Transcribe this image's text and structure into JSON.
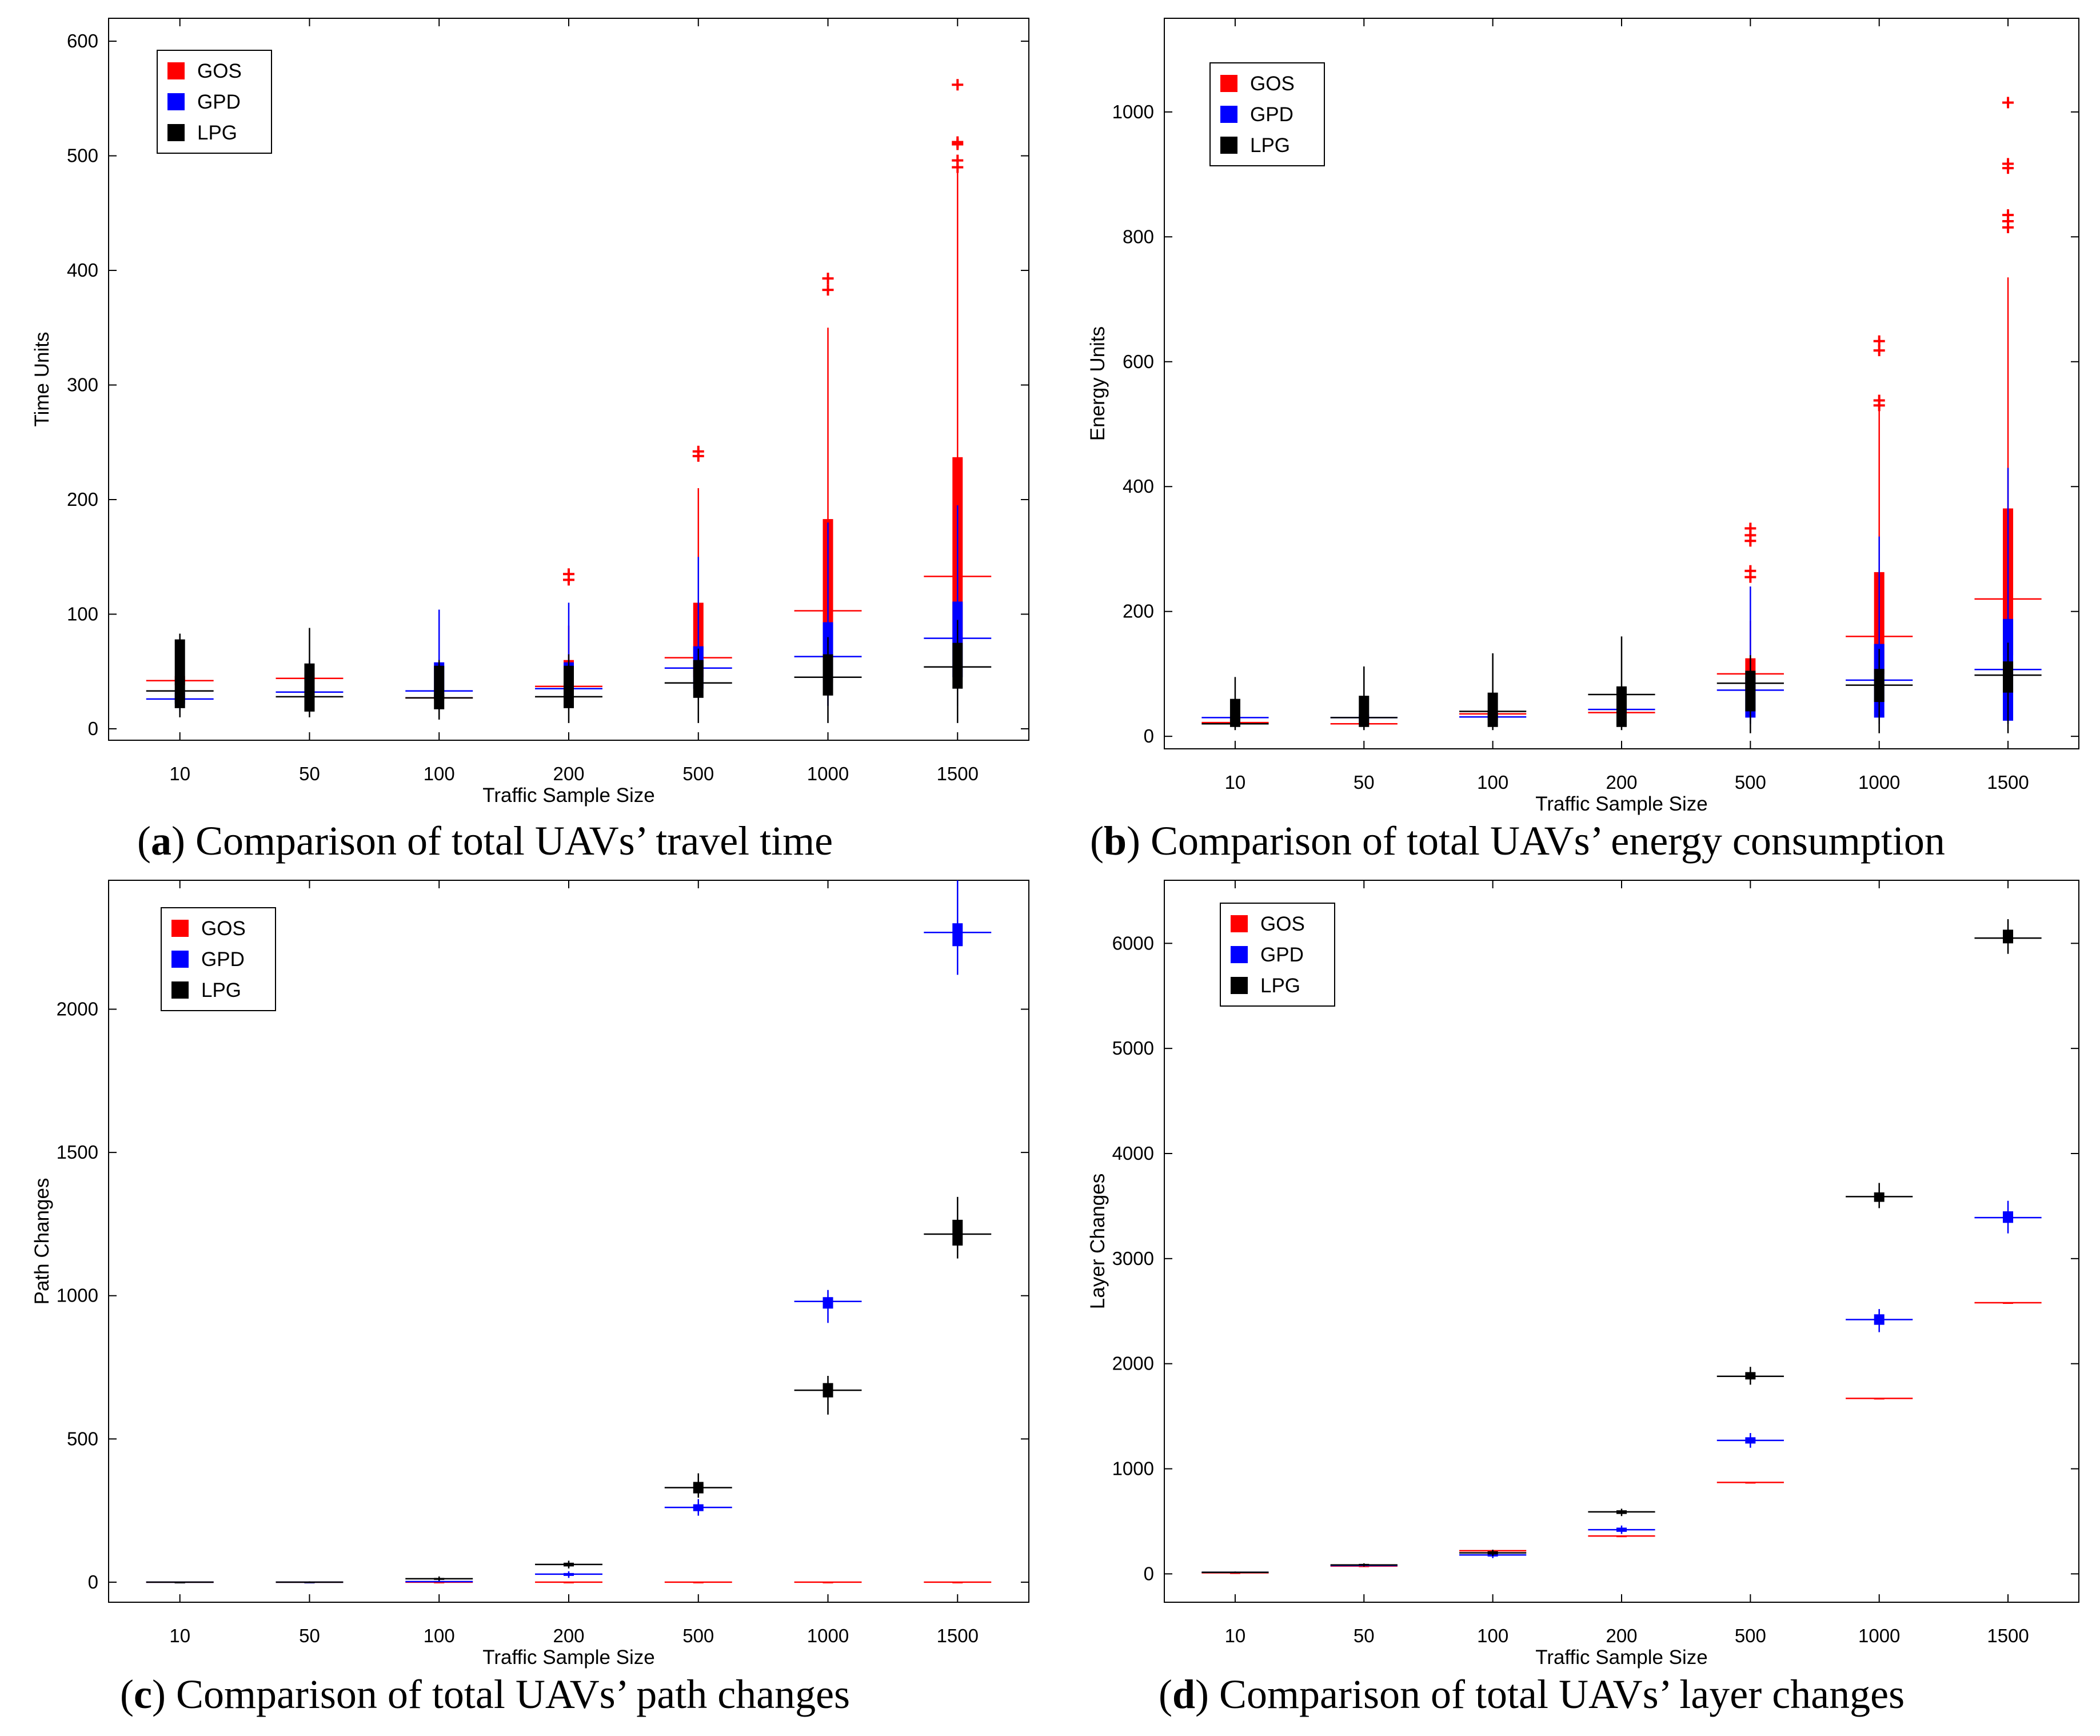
{
  "colors": {
    "GOS": "#ff0000",
    "GPD": "#0000ff",
    "LPG": "#000000"
  },
  "captions": [
    {
      "letter": "a",
      "text": "Comparison of total UAVs’ travel time"
    },
    {
      "letter": "b",
      "text": "Comparison of total UAVs’ energy consumption"
    },
    {
      "letter": "c",
      "text": "Comparison of total UAVs’ path changes"
    },
    {
      "letter": "d",
      "text": "Comparison of total UAVs’ layer changes"
    }
  ],
  "chart_data": [
    {
      "type": "box",
      "title": "Comparison of total UAVs’ travel time",
      "xlabel": "Traffic Sample Size",
      "ylabel": "Time Units",
      "categories": [
        "10",
        "50",
        "100",
        "200",
        "500",
        "1000",
        "1500"
      ],
      "ylim": [
        -10,
        620
      ],
      "yticks": [
        0,
        100,
        200,
        300,
        400,
        500,
        600
      ],
      "legend": [
        "GOS",
        "GPD",
        "LPG"
      ],
      "series": [
        {
          "name": "GOS",
          "boxes": [
            {
              "median": 42,
              "q1": 38,
              "q3": 46,
              "wlo": 35,
              "whi": 50,
              "outliers": []
            },
            {
              "median": 44,
              "q1": 40,
              "q3": 48,
              "wlo": 36,
              "whi": 52,
              "outliers": []
            },
            {
              "median": 27,
              "q1": 25,
              "q3": 30,
              "wlo": 22,
              "whi": 32,
              "outliers": []
            },
            {
              "median": 37,
              "q1": 33,
              "q3": 60,
              "wlo": 28,
              "whi": 90,
              "outliers": [
                130,
                135
              ]
            },
            {
              "median": 62,
              "q1": 45,
              "q3": 110,
              "wlo": 30,
              "whi": 210,
              "outliers": [
                238,
                242
              ]
            },
            {
              "median": 103,
              "q1": 60,
              "q3": 183,
              "wlo": 40,
              "whi": 350,
              "outliers": [
                383,
                393
              ]
            },
            {
              "median": 133,
              "q1": 75,
              "q3": 237,
              "wlo": 50,
              "whi": 485,
              "outliers": [
                490,
                496,
                510,
                512,
                562
              ]
            }
          ]
        },
        {
          "name": "GPD",
          "boxes": [
            {
              "median": 26,
              "q1": 22,
              "q3": 32,
              "wlo": 15,
              "whi": 45,
              "outliers": []
            },
            {
              "median": 32,
              "q1": 28,
              "q3": 37,
              "wlo": 22,
              "whi": 60,
              "outliers": []
            },
            {
              "median": 33,
              "q1": 27,
              "q3": 58,
              "wlo": 15,
              "whi": 104,
              "outliers": []
            },
            {
              "median": 35,
              "q1": 28,
              "q3": 58,
              "wlo": 18,
              "whi": 110,
              "outliers": []
            },
            {
              "median": 53,
              "q1": 35,
              "q3": 72,
              "wlo": 20,
              "whi": 150,
              "outliers": []
            },
            {
              "median": 63,
              "q1": 40,
              "q3": 93,
              "wlo": 20,
              "whi": 180,
              "outliers": []
            },
            {
              "median": 79,
              "q1": 45,
              "q3": 111,
              "wlo": 20,
              "whi": 195,
              "outliers": []
            }
          ]
        },
        {
          "name": "LPG",
          "boxes": [
            {
              "median": 33,
              "q1": 18,
              "q3": 78,
              "wlo": 10,
              "whi": 83,
              "outliers": []
            },
            {
              "median": 28,
              "q1": 15,
              "q3": 57,
              "wlo": 10,
              "whi": 88,
              "outliers": []
            },
            {
              "median": 27,
              "q1": 17,
              "q3": 55,
              "wlo": 8,
              "whi": 60,
              "outliers": []
            },
            {
              "median": 28,
              "q1": 18,
              "q3": 55,
              "wlo": 5,
              "whi": 65,
              "outliers": []
            },
            {
              "median": 40,
              "q1": 27,
              "q3": 60,
              "wlo": 5,
              "whi": 70,
              "outliers": []
            },
            {
              "median": 45,
              "q1": 29,
              "q3": 65,
              "wlo": 5,
              "whi": 80,
              "outliers": []
            },
            {
              "median": 54,
              "q1": 35,
              "q3": 75,
              "wlo": 5,
              "whi": 95,
              "outliers": []
            }
          ]
        }
      ]
    },
    {
      "type": "box",
      "title": "Comparison of total UAVs’ energy consumption",
      "xlabel": "Traffic Sample Size",
      "ylabel": "Energy Units",
      "categories": [
        "10",
        "50",
        "100",
        "200",
        "500",
        "1000",
        "1500"
      ],
      "ylim": [
        -20,
        1150
      ],
      "yticks": [
        0,
        200,
        400,
        600,
        800,
        1000
      ],
      "legend": [
        "GOS",
        "GPD",
        "LPG"
      ],
      "series": [
        {
          "name": "GOS",
          "boxes": [
            {
              "median": 22,
              "q1": 18,
              "q3": 26,
              "wlo": 15,
              "whi": 30,
              "outliers": []
            },
            {
              "median": 20,
              "q1": 18,
              "q3": 24,
              "wlo": 15,
              "whi": 28,
              "outliers": []
            },
            {
              "median": 36,
              "q1": 32,
              "q3": 40,
              "wlo": 28,
              "whi": 45,
              "outliers": []
            },
            {
              "median": 38,
              "q1": 34,
              "q3": 44,
              "wlo": 30,
              "whi": 50,
              "outliers": []
            },
            {
              "median": 100,
              "q1": 75,
              "q3": 125,
              "wlo": 50,
              "whi": 185,
              "outliers": [
                255,
                265,
                313,
                322,
                333
              ]
            },
            {
              "median": 160,
              "q1": 100,
              "q3": 263,
              "wlo": 60,
              "whi": 525,
              "outliers": [
                530,
                538,
                618,
                633
              ]
            },
            {
              "median": 220,
              "q1": 130,
              "q3": 365,
              "wlo": 70,
              "whi": 735,
              "outliers": [
                815,
                825,
                835,
                910,
                917,
                1015
              ]
            }
          ]
        },
        {
          "name": "GPD",
          "boxes": [
            {
              "median": 30,
              "q1": 25,
              "q3": 35,
              "wlo": 20,
              "whi": 40,
              "outliers": []
            },
            {
              "median": 30,
              "q1": 25,
              "q3": 35,
              "wlo": 20,
              "whi": 40,
              "outliers": []
            },
            {
              "median": 31,
              "q1": 26,
              "q3": 38,
              "wlo": 20,
              "whi": 45,
              "outliers": []
            },
            {
              "median": 43,
              "q1": 18,
              "q3": 46,
              "wlo": 15,
              "whi": 50,
              "outliers": []
            },
            {
              "median": 74,
              "q1": 30,
              "q3": 95,
              "wlo": 20,
              "whi": 240,
              "outliers": []
            },
            {
              "median": 90,
              "q1": 30,
              "q3": 148,
              "wlo": 20,
              "whi": 320,
              "outliers": []
            },
            {
              "median": 107,
              "q1": 25,
              "q3": 188,
              "wlo": 20,
              "whi": 430,
              "outliers": []
            }
          ]
        },
        {
          "name": "LPG",
          "boxes": [
            {
              "median": 20,
              "q1": 15,
              "q3": 60,
              "wlo": 10,
              "whi": 95,
              "outliers": []
            },
            {
              "median": 30,
              "q1": 15,
              "q3": 65,
              "wlo": 10,
              "whi": 112,
              "outliers": []
            },
            {
              "median": 40,
              "q1": 15,
              "q3": 70,
              "wlo": 10,
              "whi": 133,
              "outliers": []
            },
            {
              "median": 67,
              "q1": 15,
              "q3": 80,
              "wlo": 10,
              "whi": 160,
              "outliers": []
            },
            {
              "median": 85,
              "q1": 40,
              "q3": 105,
              "wlo": 5,
              "whi": 130,
              "outliers": []
            },
            {
              "median": 82,
              "q1": 55,
              "q3": 108,
              "wlo": 5,
              "whi": 140,
              "outliers": []
            },
            {
              "median": 98,
              "q1": 70,
              "q3": 120,
              "wlo": 5,
              "whi": 150,
              "outliers": []
            }
          ]
        }
      ]
    },
    {
      "type": "box",
      "title": "Comparison of total UAVs’ path changes",
      "xlabel": "Traffic Sample Size",
      "ylabel": "Path Changes",
      "categories": [
        "10",
        "50",
        "100",
        "200",
        "500",
        "1000",
        "1500"
      ],
      "ylim": [
        -70,
        2450
      ],
      "yticks": [
        0,
        500,
        1000,
        1500,
        2000
      ],
      "legend": [
        "GOS",
        "GPD",
        "LPG"
      ],
      "series": [
        {
          "name": "GOS",
          "boxes": [
            {
              "median": 0,
              "q1": 0,
              "q3": 0,
              "wlo": 0,
              "whi": 0,
              "outliers": []
            },
            {
              "median": 0,
              "q1": 0,
              "q3": 0,
              "wlo": 0,
              "whi": 0,
              "outliers": []
            },
            {
              "median": 0,
              "q1": 0,
              "q3": 0,
              "wlo": 0,
              "whi": 0,
              "outliers": []
            },
            {
              "median": 0,
              "q1": 0,
              "q3": 0,
              "wlo": 0,
              "whi": 0,
              "outliers": []
            },
            {
              "median": 0,
              "q1": 0,
              "q3": 0,
              "wlo": 0,
              "whi": 0,
              "outliers": []
            },
            {
              "median": 0,
              "q1": 0,
              "q3": 0,
              "wlo": 0,
              "whi": 0,
              "outliers": []
            },
            {
              "median": 0,
              "q1": 0,
              "q3": 0,
              "wlo": 0,
              "whi": 0,
              "outliers": []
            }
          ]
        },
        {
          "name": "GPD",
          "boxes": [
            {
              "median": 0,
              "q1": 0,
              "q3": 0,
              "wlo": 0,
              "whi": 0,
              "outliers": []
            },
            {
              "median": 0,
              "q1": 0,
              "q3": 0,
              "wlo": 0,
              "whi": 0,
              "outliers": []
            },
            {
              "median": 2,
              "q1": 0,
              "q3": 4,
              "wlo": 0,
              "whi": 8,
              "outliers": []
            },
            {
              "median": 28,
              "q1": 22,
              "q3": 32,
              "wlo": 15,
              "whi": 38,
              "outliers": []
            },
            {
              "median": 261,
              "q1": 248,
              "q3": 272,
              "wlo": 232,
              "whi": 290,
              "outliers": []
            },
            {
              "median": 980,
              "q1": 955,
              "q3": 995,
              "wlo": 905,
              "whi": 1020,
              "outliers": []
            },
            {
              "median": 2268,
              "q1": 2220,
              "q3": 2300,
              "wlo": 2120,
              "whi": 2450,
              "outliers": []
            }
          ]
        },
        {
          "name": "LPG",
          "boxes": [
            {
              "median": 0,
              "q1": 0,
              "q3": 0,
              "wlo": 0,
              "whi": 0,
              "outliers": []
            },
            {
              "median": 0,
              "q1": 0,
              "q3": 1,
              "wlo": 0,
              "whi": 3,
              "outliers": []
            },
            {
              "median": 12,
              "q1": 8,
              "q3": 15,
              "wlo": 5,
              "whi": 20,
              "outliers": []
            },
            {
              "median": 62,
              "q1": 55,
              "q3": 68,
              "wlo": 48,
              "whi": 75,
              "outliers": []
            },
            {
              "median": 330,
              "q1": 310,
              "q3": 350,
              "wlo": 295,
              "whi": 380,
              "outliers": []
            },
            {
              "median": 670,
              "q1": 645,
              "q3": 695,
              "wlo": 585,
              "whi": 720,
              "outliers": []
            },
            {
              "median": 1215,
              "q1": 1175,
              "q3": 1265,
              "wlo": 1130,
              "whi": 1345,
              "outliers": []
            }
          ]
        }
      ]
    },
    {
      "type": "box",
      "title": "Comparison of total UAVs’ layer changes",
      "xlabel": "Traffic Sample Size",
      "ylabel": "Layer Changes",
      "categories": [
        "10",
        "50",
        "100",
        "200",
        "500",
        "1000",
        "1500"
      ],
      "ylim": [
        -270,
        6600
      ],
      "yticks": [
        0,
        1000,
        2000,
        3000,
        4000,
        5000,
        6000
      ],
      "legend": [
        "GOS",
        "GPD",
        "LPG"
      ],
      "series": [
        {
          "name": "GOS",
          "boxes": [
            {
              "median": 10,
              "q1": 10,
              "q3": 10,
              "wlo": 10,
              "whi": 10,
              "outliers": []
            },
            {
              "median": 75,
              "q1": 75,
              "q3": 75,
              "wlo": 75,
              "whi": 75,
              "outliers": []
            },
            {
              "median": 220,
              "q1": 220,
              "q3": 220,
              "wlo": 220,
              "whi": 220,
              "outliers": []
            },
            {
              "median": 360,
              "q1": 360,
              "q3": 360,
              "wlo": 360,
              "whi": 360,
              "outliers": []
            },
            {
              "median": 870,
              "q1": 870,
              "q3": 870,
              "wlo": 870,
              "whi": 870,
              "outliers": []
            },
            {
              "median": 1670,
              "q1": 1670,
              "q3": 1670,
              "wlo": 1670,
              "whi": 1670,
              "outliers": []
            },
            {
              "median": 2580,
              "q1": 2580,
              "q3": 2580,
              "wlo": 2580,
              "whi": 2580,
              "outliers": []
            }
          ]
        },
        {
          "name": "GPD",
          "boxes": [
            {
              "median": 15,
              "q1": 12,
              "q3": 18,
              "wlo": 8,
              "whi": 22,
              "outliers": []
            },
            {
              "median": 80,
              "q1": 75,
              "q3": 90,
              "wlo": 70,
              "whi": 95,
              "outliers": []
            },
            {
              "median": 180,
              "q1": 165,
              "q3": 200,
              "wlo": 150,
              "whi": 215,
              "outliers": []
            },
            {
              "median": 420,
              "q1": 400,
              "q3": 440,
              "wlo": 380,
              "whi": 460,
              "outliers": []
            },
            {
              "median": 1270,
              "q1": 1240,
              "q3": 1300,
              "wlo": 1200,
              "whi": 1340,
              "outliers": []
            },
            {
              "median": 2420,
              "q1": 2370,
              "q3": 2470,
              "wlo": 2300,
              "whi": 2520,
              "outliers": []
            },
            {
              "median": 3390,
              "q1": 3340,
              "q3": 3450,
              "wlo": 3240,
              "whi": 3550,
              "outliers": []
            }
          ]
        },
        {
          "name": "LPG",
          "boxes": [
            {
              "median": 15,
              "q1": 12,
              "q3": 18,
              "wlo": 8,
              "whi": 22,
              "outliers": []
            },
            {
              "median": 85,
              "q1": 80,
              "q3": 95,
              "wlo": 70,
              "whi": 100,
              "outliers": []
            },
            {
              "median": 200,
              "q1": 185,
              "q3": 215,
              "wlo": 170,
              "whi": 230,
              "outliers": []
            },
            {
              "median": 590,
              "q1": 570,
              "q3": 605,
              "wlo": 550,
              "whi": 620,
              "outliers": []
            },
            {
              "median": 1880,
              "q1": 1850,
              "q3": 1920,
              "wlo": 1800,
              "whi": 1970,
              "outliers": []
            },
            {
              "median": 3590,
              "q1": 3540,
              "q3": 3630,
              "wlo": 3480,
              "whi": 3720,
              "outliers": []
            },
            {
              "median": 6050,
              "q1": 6000,
              "q3": 6130,
              "wlo": 5900,
              "whi": 6230,
              "outliers": []
            }
          ]
        }
      ]
    }
  ]
}
